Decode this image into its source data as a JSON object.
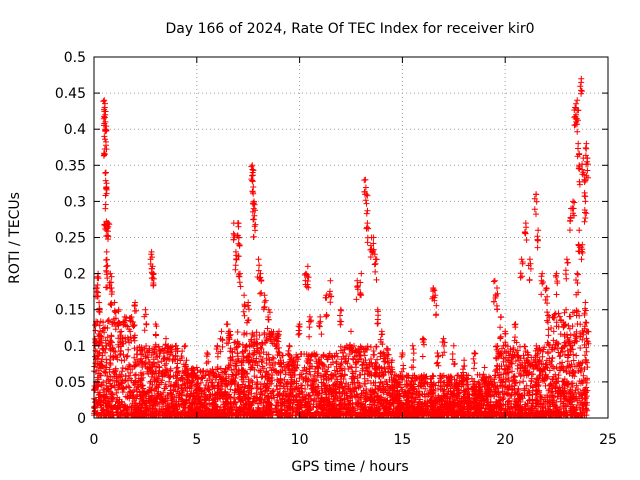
{
  "chart_data": {
    "type": "scatter",
    "title": "Day 166 of 2024, Rate Of TEC Index for receiver kir0",
    "xlabel": "GPS time / hours",
    "ylabel": "ROTI / TECUs",
    "xlim": [
      0,
      25
    ],
    "ylim": [
      0,
      0.5
    ],
    "xticks": [
      0,
      5,
      10,
      15,
      20,
      25
    ],
    "xtick_labels": [
      "0",
      "5",
      "10",
      "15",
      "20",
      "25"
    ],
    "yticks": [
      0,
      0.05,
      0.1,
      0.15,
      0.2,
      0.25,
      0.3,
      0.35,
      0.4,
      0.45,
      0.5
    ],
    "ytick_labels": [
      "0",
      "0.05",
      "0.1",
      "0.15",
      "0.2",
      "0.25",
      "0.3",
      "0.35",
      "0.4",
      "0.45",
      "0.5"
    ],
    "grid": true,
    "marker": "+",
    "color": "#ff0000",
    "series": [
      {
        "name": "ROTI",
        "points": [
          [
            0.1,
            0.13
          ],
          [
            0.15,
            0.18
          ],
          [
            0.2,
            0.2
          ],
          [
            0.25,
            0.16
          ],
          [
            0.3,
            0.12
          ],
          [
            0.4,
            0.1
          ],
          [
            0.5,
            0.44
          ],
          [
            0.52,
            0.43
          ],
          [
            0.55,
            0.42
          ],
          [
            0.5,
            0.39
          ],
          [
            0.56,
            0.4
          ],
          [
            0.58,
            0.34
          ],
          [
            0.6,
            0.32
          ],
          [
            0.55,
            0.29
          ],
          [
            0.65,
            0.27
          ],
          [
            0.7,
            0.27
          ],
          [
            0.62,
            0.23
          ],
          [
            0.6,
            0.21
          ],
          [
            0.8,
            0.2
          ],
          [
            0.85,
            0.18
          ],
          [
            1.0,
            0.16
          ],
          [
            1.2,
            0.15
          ],
          [
            1.5,
            0.14
          ],
          [
            2.0,
            0.16
          ],
          [
            2.5,
            0.15
          ],
          [
            2.8,
            0.23
          ],
          [
            2.85,
            0.21
          ],
          [
            2.9,
            0.2
          ],
          [
            3.0,
            0.13
          ],
          [
            3.5,
            0.11
          ],
          [
            4.0,
            0.1
          ],
          [
            4.5,
            0.08
          ],
          [
            5.0,
            0.07
          ],
          [
            5.5,
            0.09
          ],
          [
            6.0,
            0.1
          ],
          [
            6.2,
            0.12
          ],
          [
            6.5,
            0.13
          ],
          [
            6.8,
            0.27
          ],
          [
            6.9,
            0.23
          ],
          [
            7.0,
            0.27
          ],
          [
            7.05,
            0.25
          ],
          [
            7.1,
            0.2
          ],
          [
            7.3,
            0.17
          ],
          [
            7.5,
            0.16
          ],
          [
            7.7,
            0.35
          ],
          [
            7.72,
            0.34
          ],
          [
            7.75,
            0.32
          ],
          [
            7.78,
            0.3
          ],
          [
            7.8,
            0.28
          ],
          [
            8.0,
            0.22
          ],
          [
            8.1,
            0.2
          ],
          [
            8.3,
            0.17
          ],
          [
            8.5,
            0.15
          ],
          [
            9.0,
            0.12
          ],
          [
            9.5,
            0.1
          ],
          [
            10.0,
            0.13
          ],
          [
            10.3,
            0.2
          ],
          [
            10.4,
            0.21
          ],
          [
            10.5,
            0.14
          ],
          [
            11.0,
            0.14
          ],
          [
            11.3,
            0.17
          ],
          [
            11.5,
            0.19
          ],
          [
            12.0,
            0.15
          ],
          [
            12.5,
            0.12
          ],
          [
            12.8,
            0.19
          ],
          [
            13.0,
            0.2
          ],
          [
            13.2,
            0.33
          ],
          [
            13.25,
            0.31
          ],
          [
            13.3,
            0.27
          ],
          [
            13.5,
            0.25
          ],
          [
            13.6,
            0.25
          ],
          [
            13.7,
            0.22
          ],
          [
            13.8,
            0.15
          ],
          [
            14.0,
            0.12
          ],
          [
            14.5,
            0.08
          ],
          [
            15.0,
            0.09
          ],
          [
            15.5,
            0.1
          ],
          [
            16.0,
            0.11
          ],
          [
            16.5,
            0.18
          ],
          [
            16.6,
            0.17
          ],
          [
            16.7,
            0.09
          ],
          [
            17.0,
            0.11
          ],
          [
            17.5,
            0.1
          ],
          [
            18.0,
            0.08
          ],
          [
            18.5,
            0.09
          ],
          [
            19.0,
            0.07
          ],
          [
            19.5,
            0.19
          ],
          [
            19.6,
            0.18
          ],
          [
            19.8,
            0.14
          ],
          [
            20.0,
            0.12
          ],
          [
            20.5,
            0.13
          ],
          [
            20.8,
            0.22
          ],
          [
            21.0,
            0.27
          ],
          [
            21.2,
            0.22
          ],
          [
            21.5,
            0.31
          ],
          [
            21.6,
            0.26
          ],
          [
            21.8,
            0.2
          ],
          [
            22.0,
            0.18
          ],
          [
            22.5,
            0.2
          ],
          [
            23.0,
            0.22
          ],
          [
            23.2,
            0.29
          ],
          [
            23.3,
            0.3
          ],
          [
            23.4,
            0.43
          ],
          [
            23.45,
            0.42
          ],
          [
            23.5,
            0.44
          ],
          [
            23.55,
            0.38
          ],
          [
            23.6,
            0.35
          ],
          [
            23.7,
            0.47
          ],
          [
            23.8,
            0.36
          ],
          [
            23.85,
            0.33
          ],
          [
            23.9,
            0.3
          ],
          [
            23.95,
            0.38
          ],
          [
            24.0,
            0.36
          ],
          [
            23.6,
            0.26
          ],
          [
            23.75,
            0.24
          ],
          [
            23.5,
            0.2
          ],
          [
            23.9,
            0.16
          ],
          [
            24.0,
            0.12
          ]
        ],
        "dense_band": [
          {
            "x_from": 0.0,
            "x_to": 2.0,
            "y_max": 0.14
          },
          {
            "x_from": 2.0,
            "x_to": 4.5,
            "y_max": 0.1
          },
          {
            "x_from": 4.5,
            "x_to": 6.5,
            "y_max": 0.07
          },
          {
            "x_from": 6.5,
            "x_to": 9.0,
            "y_max": 0.12
          },
          {
            "x_from": 9.0,
            "x_to": 12.0,
            "y_max": 0.09
          },
          {
            "x_from": 12.0,
            "x_to": 14.5,
            "y_max": 0.1
          },
          {
            "x_from": 14.5,
            "x_to": 19.5,
            "y_max": 0.06
          },
          {
            "x_from": 19.5,
            "x_to": 22.0,
            "y_max": 0.1
          },
          {
            "x_from": 22.0,
            "x_to": 24.0,
            "y_max": 0.15
          }
        ]
      }
    ]
  }
}
